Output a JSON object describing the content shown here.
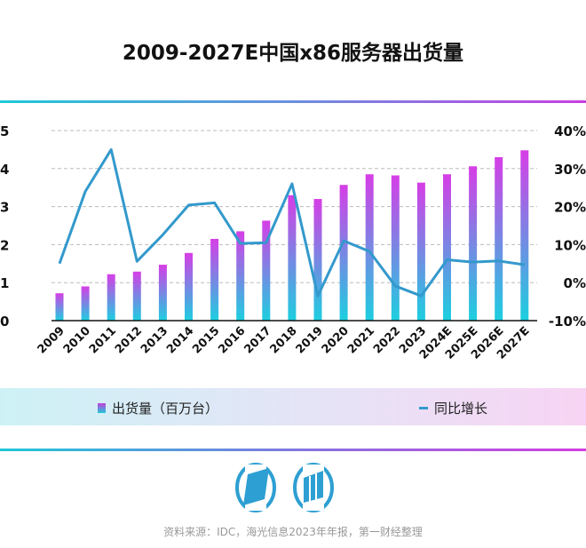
{
  "title": "2009-2027E中国x86服务器出货量",
  "legend": {
    "bar": "出货量（百万台）",
    "line": "同比增长"
  },
  "source": "资料来源：IDC，海光信息2023年年报，第一财经整理",
  "logo": "yicai-logo",
  "chart_data": {
    "type": "bar+line",
    "title": "2009-2027E中国x86服务器出货量",
    "categories": [
      "2009",
      "2010",
      "2011",
      "2012",
      "2013",
      "2014",
      "2015",
      "2016",
      "2017",
      "2018",
      "2019",
      "2020",
      "2021",
      "2022",
      "2023",
      "2024E",
      "2025E",
      "2026E",
      "2027E"
    ],
    "series": [
      {
        "name": "出货量（百万台）",
        "type": "bar",
        "axis": "left",
        "values": [
          0.72,
          0.9,
          1.22,
          1.29,
          1.47,
          1.78,
          2.15,
          2.35,
          2.63,
          3.3,
          3.2,
          3.57,
          3.85,
          3.82,
          3.63,
          3.85,
          4.06,
          4.3,
          4.48
        ]
      },
      {
        "name": "同比增长",
        "type": "line",
        "axis": "right",
        "values": [
          5,
          24,
          35,
          5.6,
          12.6,
          20.4,
          21,
          10.3,
          10.5,
          26,
          -3.5,
          11,
          8.2,
          -0.9,
          -3.5,
          6,
          5.4,
          5.7,
          4.7
        ]
      }
    ],
    "left_axis": {
      "ylim": [
        0,
        5
      ],
      "ticks": [
        "0",
        "1",
        "2",
        "3",
        "4",
        "5"
      ]
    },
    "right_axis": {
      "ylim": [
        -10,
        40
      ],
      "ticks": [
        "-10%",
        "0%",
        "10%",
        "20%",
        "30%",
        "40%"
      ]
    },
    "grid": true,
    "legend_position": "bottom",
    "colors": {
      "bar_top": "#d63ee6",
      "bar_bottom": "#1ccfe0",
      "line": "#3399cc"
    }
  }
}
